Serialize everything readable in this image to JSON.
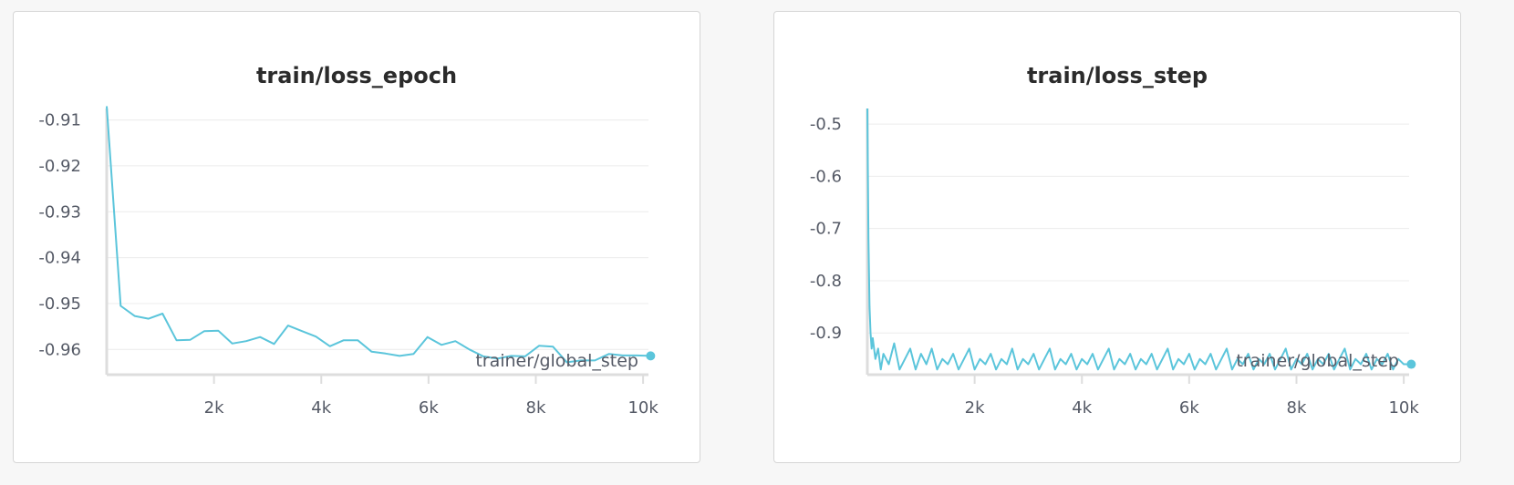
{
  "chart_data": [
    {
      "type": "line",
      "title": "train/loss_epoch",
      "xlabel": "trainer/global_step",
      "ylabel": "",
      "xlim": [
        0,
        10100
      ],
      "ylim": [
        -0.9655,
        -0.9075
      ],
      "x_ticks": [
        2000,
        4000,
        6000,
        8000,
        10000
      ],
      "x_tick_labels": [
        "2k",
        "4k",
        "6k",
        "8k",
        "10k"
      ],
      "y_ticks": [
        -0.91,
        -0.92,
        -0.93,
        -0.94,
        -0.95,
        -0.96
      ],
      "y_tick_labels": [
        "-0.91",
        "-0.92",
        "-0.93",
        "-0.94",
        "-0.95",
        "-0.96"
      ],
      "grid": true,
      "legend": "none",
      "color": "#5bc5db",
      "series": [
        {
          "x": [
            0,
            260,
            520,
            780,
            1040,
            1300,
            1560,
            1820,
            2080,
            2340,
            2600,
            2860,
            3120,
            3380,
            3640,
            3900,
            4160,
            4420,
            4680,
            4940,
            5200,
            5460,
            5720,
            5980,
            6240,
            6500,
            6760,
            7020,
            7280,
            7540,
            7800,
            8060,
            8320,
            8580,
            8840,
            9100,
            9360,
            9620,
            9880,
            10140
          ],
          "y": [
            -0.907,
            -0.9505,
            -0.9527,
            -0.9533,
            -0.9522,
            -0.958,
            -0.9579,
            -0.956,
            -0.9559,
            -0.9587,
            -0.9582,
            -0.9573,
            -0.9588,
            -0.9548,
            -0.956,
            -0.9572,
            -0.9593,
            -0.958,
            -0.958,
            -0.9605,
            -0.9609,
            -0.9614,
            -0.961,
            -0.9573,
            -0.959,
            -0.9582,
            -0.96,
            -0.9615,
            -0.962,
            -0.9614,
            -0.9615,
            -0.9592,
            -0.9594,
            -0.9628,
            -0.9624,
            -0.9624,
            -0.961,
            -0.9613,
            -0.9613,
            -0.9614
          ]
        }
      ]
    },
    {
      "type": "line",
      "title": "train/loss_step",
      "xlabel": "trainer/global_step",
      "ylabel": "",
      "xlim": [
        0,
        10100
      ],
      "ylim": [
        -0.98,
        -0.47
      ],
      "x_ticks": [
        2000,
        4000,
        6000,
        8000,
        10000
      ],
      "x_tick_labels": [
        "2k",
        "4k",
        "6k",
        "8k",
        "10k"
      ],
      "y_ticks": [
        -0.5,
        -0.6,
        -0.7,
        -0.8,
        -0.9
      ],
      "y_tick_labels": [
        "-0.5",
        "-0.6",
        "-0.7",
        "-0.8",
        "-0.9"
      ],
      "grid": true,
      "legend": "none",
      "color": "#5bc5db",
      "series": [
        {
          "x": [
            0,
            20,
            40,
            60,
            80,
            100,
            150,
            200,
            250,
            300,
            400,
            500,
            600,
            700,
            800,
            900,
            1000,
            1100,
            1200,
            1300,
            1400,
            1500,
            1600,
            1700,
            1800,
            1900,
            2000,
            2100,
            2200,
            2300,
            2400,
            2500,
            2600,
            2700,
            2800,
            2900,
            3000,
            3100,
            3200,
            3300,
            3400,
            3500,
            3600,
            3700,
            3800,
            3900,
            4000,
            4100,
            4200,
            4300,
            4400,
            4500,
            4600,
            4700,
            4800,
            4900,
            5000,
            5100,
            5200,
            5300,
            5400,
            5500,
            5600,
            5700,
            5800,
            5900,
            6000,
            6100,
            6200,
            6300,
            6400,
            6500,
            6600,
            6700,
            6800,
            6900,
            7000,
            7100,
            7200,
            7300,
            7400,
            7500,
            7600,
            7700,
            7800,
            7900,
            8000,
            8100,
            8200,
            8300,
            8400,
            8500,
            8600,
            8700,
            8800,
            8900,
            9000,
            9100,
            9200,
            9300,
            9400,
            9500,
            9600,
            9700,
            9800,
            9900,
            10000,
            10140
          ],
          "y": [
            -0.47,
            -0.72,
            -0.85,
            -0.9,
            -0.93,
            -0.91,
            -0.95,
            -0.93,
            -0.97,
            -0.94,
            -0.96,
            -0.92,
            -0.97,
            -0.95,
            -0.93,
            -0.97,
            -0.94,
            -0.96,
            -0.93,
            -0.97,
            -0.95,
            -0.96,
            -0.94,
            -0.97,
            -0.95,
            -0.93,
            -0.97,
            -0.95,
            -0.96,
            -0.94,
            -0.97,
            -0.95,
            -0.96,
            -0.93,
            -0.97,
            -0.95,
            -0.96,
            -0.94,
            -0.97,
            -0.95,
            -0.93,
            -0.97,
            -0.95,
            -0.96,
            -0.94,
            -0.97,
            -0.95,
            -0.96,
            -0.94,
            -0.97,
            -0.95,
            -0.93,
            -0.97,
            -0.95,
            -0.96,
            -0.94,
            -0.97,
            -0.95,
            -0.96,
            -0.94,
            -0.97,
            -0.95,
            -0.93,
            -0.97,
            -0.95,
            -0.96,
            -0.94,
            -0.97,
            -0.95,
            -0.96,
            -0.94,
            -0.97,
            -0.95,
            -0.93,
            -0.97,
            -0.95,
            -0.96,
            -0.94,
            -0.97,
            -0.95,
            -0.96,
            -0.94,
            -0.97,
            -0.95,
            -0.93,
            -0.97,
            -0.95,
            -0.96,
            -0.94,
            -0.97,
            -0.95,
            -0.96,
            -0.94,
            -0.97,
            -0.95,
            -0.93,
            -0.97,
            -0.95,
            -0.96,
            -0.94,
            -0.97,
            -0.95,
            -0.96,
            -0.94,
            -0.97,
            -0.95,
            -0.96,
            -0.96
          ]
        }
      ]
    }
  ]
}
